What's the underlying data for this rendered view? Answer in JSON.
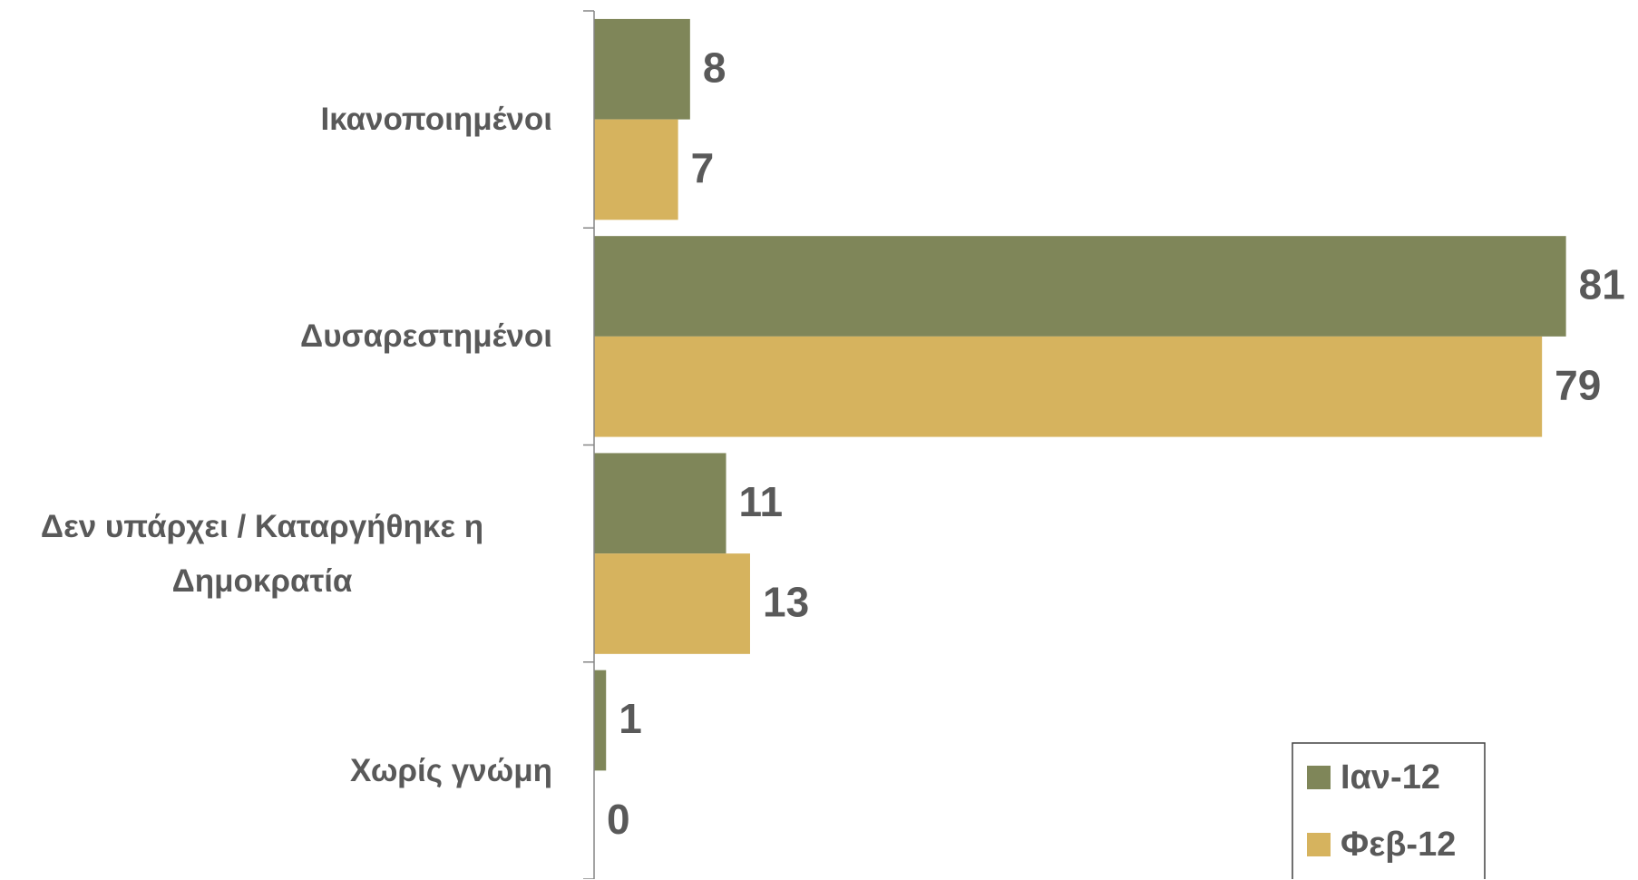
{
  "chart_data": {
    "type": "barh",
    "categories": [
      "Ικανοποιημένοι",
      "Δυσαρεστημένοι",
      "Δεν υπάρχει / Καταργήθηκε η Δημοκρατία",
      "Χωρίς γνώμη"
    ],
    "series": [
      {
        "name": "Ιαν-12",
        "color": "#7f8659",
        "values": [
          8,
          81,
          11,
          1
        ]
      },
      {
        "name": "Φεβ-12",
        "color": "#d6b35e",
        "values": [
          7,
          79,
          13,
          0
        ]
      }
    ],
    "xlim": [
      0,
      87
    ],
    "legend": "lower right"
  }
}
